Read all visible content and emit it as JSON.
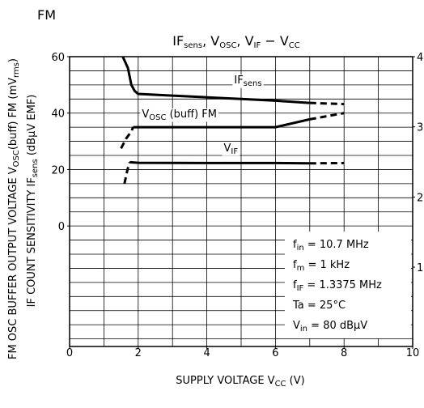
{
  "chart_data": {
    "type": "line",
    "corner_label": "FM",
    "title": [
      {
        "text": "IF"
      },
      {
        "text": "sens",
        "sub": true
      },
      {
        "text": ", V"
      },
      {
        "text": "OSC",
        "sub": true
      },
      {
        "text": ", V"
      },
      {
        "text": "IF",
        "sub": true
      },
      {
        "text": "  −  V"
      },
      {
        "text": "CC",
        "sub": true
      }
    ],
    "x_label": [
      {
        "text": "SUPPLY VOLTAGE   V"
      },
      {
        "text": "CC",
        "sub": true
      },
      {
        "text": "   (V)"
      }
    ],
    "y_label": [
      {
        "text": "IF COUNT SENSITIVITY   IF"
      },
      {
        "text": "sens",
        "sub": true
      },
      {
        "text": "  (dBμV EMF)"
      }
    ],
    "y2_label": [
      {
        "text": "FM OSC BUFFER OUTPUT VOLTAGE  V"
      },
      {
        "text": "OSC",
        "sub": true
      },
      {
        "text": "(buff)  FM (mV"
      },
      {
        "text": "rms",
        "sub": true
      },
      {
        "text": ")"
      }
    ],
    "xlim": [
      0,
      10
    ],
    "xticks": [
      0,
      2,
      4,
      6,
      8,
      10
    ],
    "xgrid": [
      1,
      2,
      3,
      4,
      5,
      6,
      7,
      8,
      9
    ],
    "ylim": [
      -42.7,
      60
    ],
    "yticks": [
      0,
      20,
      40,
      60
    ],
    "ygrid": [
      -40,
      -35,
      -30,
      -25,
      -20,
      -15,
      -10,
      -5,
      0,
      5,
      10,
      15,
      20,
      25,
      30,
      35,
      40,
      45,
      50,
      55
    ],
    "y2lim": [
      -0.13,
      4
    ],
    "y2ticks": [
      1,
      2,
      3,
      4
    ],
    "grid": true,
    "color": "#000000",
    "series": [
      {
        "label": [
          {
            "text": "IF"
          },
          {
            "text": "sens",
            "sub": true
          }
        ],
        "label_at": [
          5.2,
          50.5
        ],
        "style": "solid",
        "x": [
          1.55,
          1.7,
          1.8,
          1.9,
          2.0,
          3,
          4,
          5,
          6,
          7
        ],
        "values": [
          60,
          56,
          50,
          47.8,
          46.8,
          46.2,
          45.6,
          45.0,
          44.4,
          43.6
        ]
      },
      {
        "style": "dashed",
        "x": [
          7,
          8
        ],
        "values": [
          43.6,
          43.2
        ]
      },
      {
        "label": [
          {
            "text": "V"
          },
          {
            "text": "OSC",
            "sub": true
          },
          {
            "text": " (buff) FM"
          }
        ],
        "label_at": [
          3.2,
          38.5
        ],
        "style": "solid",
        "x": [
          1.85,
          2,
          3,
          4,
          5,
          6,
          7
        ],
        "values": [
          35,
          35,
          35,
          35,
          35,
          35,
          37.8
        ]
      },
      {
        "style": "dashed",
        "x": [
          1.5,
          1.65,
          1.8,
          1.85
        ],
        "values": [
          27.5,
          31,
          33.5,
          35
        ]
      },
      {
        "style": "dashed",
        "x": [
          7,
          8
        ],
        "values": [
          37.8,
          40
        ]
      },
      {
        "label": [
          {
            "text": "V"
          },
          {
            "text": "IF",
            "sub": true
          }
        ],
        "label_at": [
          4.7,
          26.5
        ],
        "style": "solid",
        "x": [
          1.75,
          2,
          4,
          6,
          7
        ],
        "values": [
          22.6,
          22.4,
          22.3,
          22.3,
          22.2
        ]
      },
      {
        "style": "dashed",
        "x": [
          1.6,
          1.65,
          1.7,
          1.75
        ],
        "values": [
          15,
          18,
          20.5,
          22.6
        ]
      },
      {
        "style": "dashed",
        "x": [
          7,
          8
        ],
        "values": [
          22.2,
          22.3
        ]
      }
    ],
    "annotations": [
      [
        {
          "text": "f"
        },
        {
          "text": "in",
          "sub": true
        },
        {
          "text": " = 10.7 MHz"
        }
      ],
      [
        {
          "text": "f"
        },
        {
          "text": "m",
          "sub": true
        },
        {
          "text": " = 1 kHz"
        }
      ],
      [
        {
          "text": "f"
        },
        {
          "text": "IF",
          "sub": true
        },
        {
          "text": " = 1.3375 MHz"
        }
      ],
      [
        {
          "text": "Ta = 25°C"
        }
      ],
      [
        {
          "text": "V"
        },
        {
          "text": "in",
          "sub": true
        },
        {
          "text": " = 80 dBμV"
        }
      ]
    ]
  }
}
